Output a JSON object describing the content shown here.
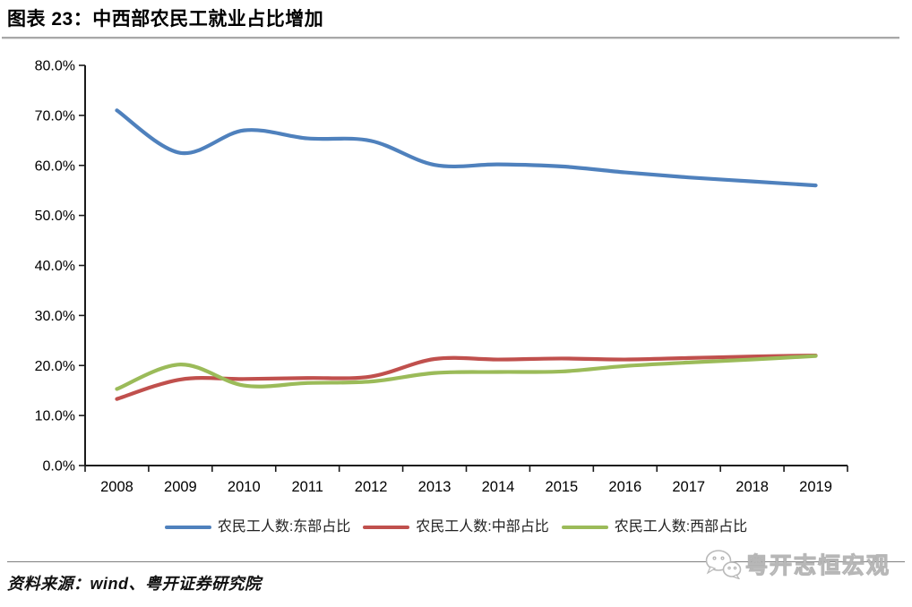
{
  "header": {
    "title": "图表 23：中西部农民工就业占比增加"
  },
  "chart_data": {
    "type": "line",
    "title": "图表 23：中西部农民工就业占比增加",
    "x": [
      2008,
      2009,
      2010,
      2011,
      2012,
      2013,
      2014,
      2015,
      2016,
      2017,
      2018,
      2019
    ],
    "xtick_labels": [
      "2008",
      "2009",
      "2010",
      "2011",
      "2012",
      "2013",
      "2014",
      "2015",
      "2016",
      "2017",
      "2018",
      "2019"
    ],
    "series": [
      {
        "name": "农民工人数:东部占比",
        "color": "#4F81BD",
        "values": [
          71.0,
          62.5,
          67.0,
          65.4,
          64.9,
          60.1,
          60.2,
          59.8,
          58.6,
          57.6,
          56.8,
          56.0
        ]
      },
      {
        "name": "农民工人数:中部占比",
        "color": "#C0504D",
        "values": [
          13.3,
          17.2,
          17.3,
          17.5,
          17.8,
          21.3,
          21.2,
          21.4,
          21.2,
          21.5,
          21.8,
          22.0
        ]
      },
      {
        "name": "农民工人数:西部占比",
        "color": "#9BBB59",
        "values": [
          15.3,
          20.2,
          16.0,
          16.5,
          16.8,
          18.5,
          18.7,
          18.8,
          19.9,
          20.6,
          21.2,
          21.9
        ]
      }
    ],
    "xlabel": "",
    "ylabel": "",
    "ylim": [
      0,
      80
    ],
    "ytick_step": 10,
    "ytick_labels": [
      "0.0%",
      "10.0%",
      "20.0%",
      "30.0%",
      "40.0%",
      "50.0%",
      "60.0%",
      "70.0%",
      "80.0%"
    ],
    "grid": false,
    "smooth": true,
    "legend_position": "bottom"
  },
  "footer": {
    "source": "资料来源：wind、粤开证券研究院",
    "watermark": "粤开志恒宏观",
    "watermark_icon": "wechat-icon"
  },
  "colors": {
    "east_line": "#4F81BD",
    "central_line": "#C0504D",
    "west_line": "#9BBB59",
    "axis": "#1a1a1a",
    "title_rule": "#a8a8a8",
    "bottom_rule": "#7f7f7f"
  }
}
